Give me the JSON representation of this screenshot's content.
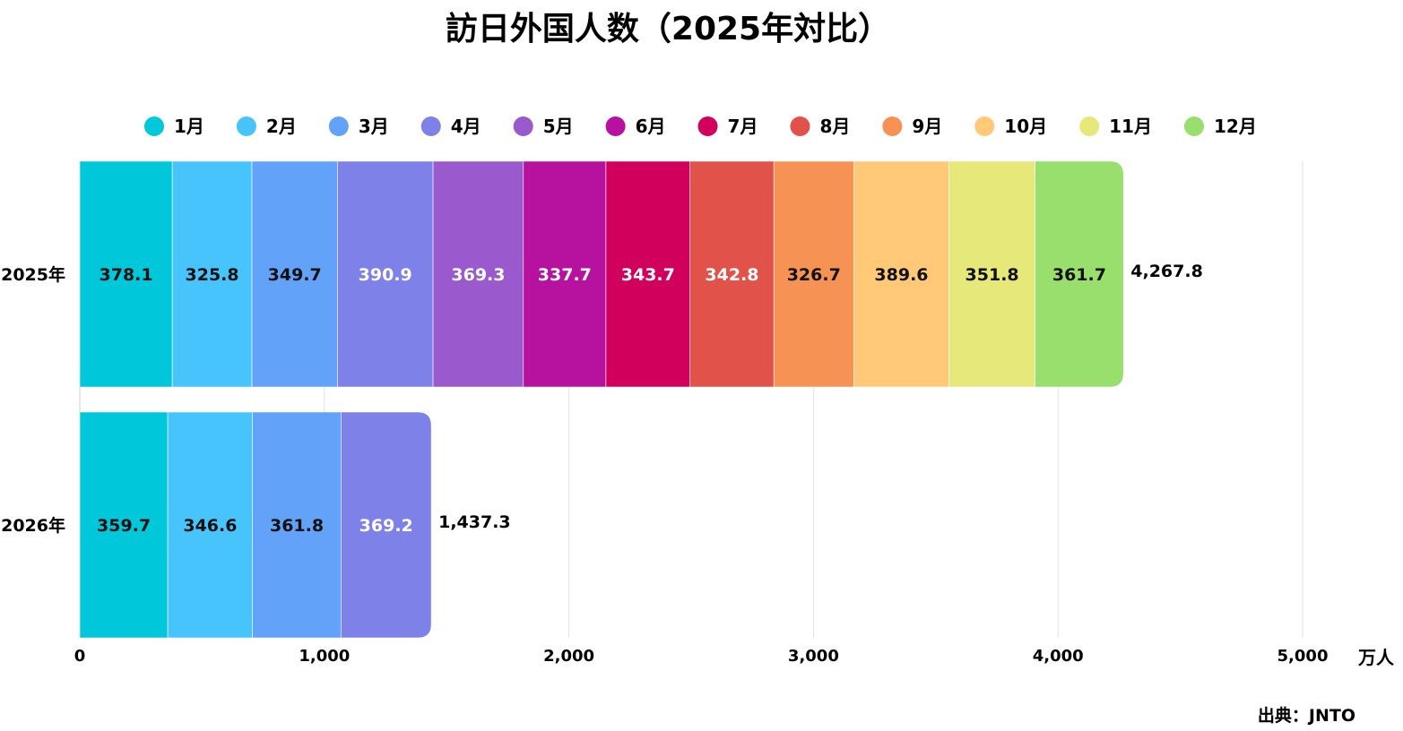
{
  "chart_data": {
    "type": "bar",
    "orientation": "horizontal",
    "stacked": true,
    "title": "訪日外国人数（2025年対比）",
    "categories": [
      "2025年",
      "2026年"
    ],
    "series": [
      {
        "name": "1月",
        "color": "#00C8DA",
        "label_color": "#111111",
        "values": [
          378.1,
          359.7
        ]
      },
      {
        "name": "2月",
        "color": "#48C4FD",
        "label_color": "#111111",
        "values": [
          325.8,
          346.6
        ]
      },
      {
        "name": "3月",
        "color": "#63A2F9",
        "label_color": "#111111",
        "values": [
          349.7,
          361.8
        ]
      },
      {
        "name": "4月",
        "color": "#7E81E8",
        "label_color": "#ffffff",
        "values": [
          390.9,
          369.2
        ]
      },
      {
        "name": "5月",
        "color": "#9A59CC",
        "label_color": "#ffffff",
        "values": [
          369.3,
          null
        ]
      },
      {
        "name": "6月",
        "color": "#B7119F",
        "label_color": "#ffffff",
        "values": [
          337.7,
          null
        ]
      },
      {
        "name": "7月",
        "color": "#D0005C",
        "label_color": "#ffffff",
        "values": [
          343.7,
          null
        ]
      },
      {
        "name": "8月",
        "color": "#E0524A",
        "label_color": "#ffffff",
        "values": [
          342.8,
          null
        ]
      },
      {
        "name": "9月",
        "color": "#F69254",
        "label_color": "#111111",
        "values": [
          326.7,
          null
        ]
      },
      {
        "name": "10月",
        "color": "#FFC978",
        "label_color": "#111111",
        "values": [
          389.6,
          null
        ]
      },
      {
        "name": "11月",
        "color": "#E6E87A",
        "label_color": "#111111",
        "values": [
          351.8,
          null
        ]
      },
      {
        "name": "12月",
        "color": "#98DF6D",
        "label_color": "#111111",
        "values": [
          361.7,
          null
        ]
      }
    ],
    "totals": [
      "4,267.8",
      "1,437.3"
    ],
    "xlim": [
      0,
      5000
    ],
    "x_ticks": [
      0,
      1000,
      2000,
      3000,
      4000,
      5000
    ],
    "x_tick_labels": [
      "0",
      "1,000",
      "2,000",
      "3,000",
      "4,000",
      "5,000"
    ],
    "x_unit": "万人",
    "grid": true,
    "legend_position": "top"
  },
  "source_label": "出典：JNTO"
}
